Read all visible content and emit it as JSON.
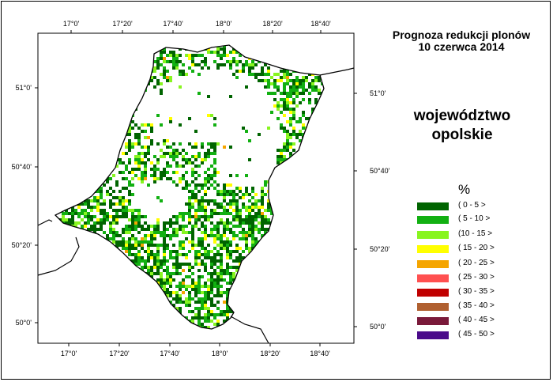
{
  "title": {
    "line1": "Prognoza redukcji plonów",
    "line2": "10 czerwca 2014"
  },
  "region": {
    "line1": "województwo",
    "line2": "opolskie"
  },
  "axes": {
    "top_labels": [
      "17°0'",
      "17°20'",
      "17°40'",
      "18°0'",
      "18°20'",
      "18°40'"
    ],
    "bottom_labels": [
      "17°0'",
      "17°20'",
      "17°40'",
      "18°0'",
      "18°20'",
      "18°40'"
    ],
    "left_labels": [
      "51°0'",
      "50°40'",
      "50°20'",
      "50°0'"
    ],
    "right_labels": [
      "51°0'",
      "50°40'",
      "50°20'",
      "50°0'"
    ]
  },
  "legend": {
    "unit": "%",
    "items": [
      {
        "label": "( 0 - 5 >",
        "color": "#006400"
      },
      {
        "label": "( 5 - 10 >",
        "color": "#12b012"
      },
      {
        "label": "(10 - 15 >",
        "color": "#88f520"
      },
      {
        "label": "( 15 - 20 >",
        "color": "#ffff00"
      },
      {
        "label": "( 20 - 25 >",
        "color": "#f5a500"
      },
      {
        "label": "( 25 - 30 >",
        "color": "#ff5050"
      },
      {
        "label": "( 30 - 35 >",
        "color": "#c00000"
      },
      {
        "label": "( 35 - 40 >",
        "color": "#b06030"
      },
      {
        "label": "( 40 - 45 >",
        "color": "#7a1a3a"
      },
      {
        "label": "( 45 - 50 >",
        "color": "#4a0a8a"
      }
    ]
  }
}
